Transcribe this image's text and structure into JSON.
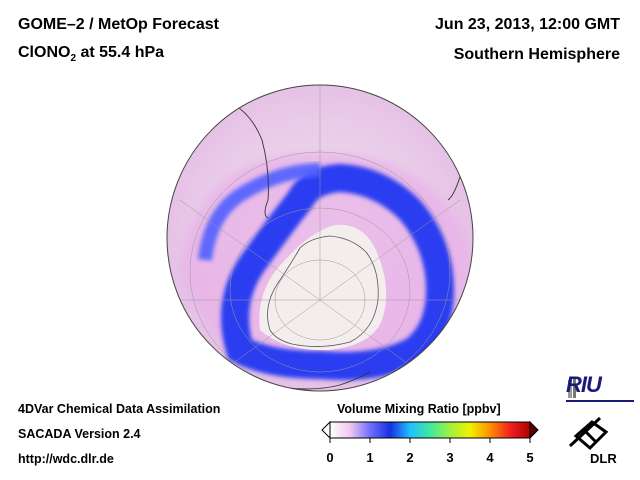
{
  "header": {
    "title": "GOME–2 / MetOp Forecast",
    "species_main": "ClONO",
    "species_sub": "2",
    "species_rest": " at 55.4 hPa",
    "datetime": "Jun 23, 2013, 12:00 GMT",
    "region": "Southern Hemisphere"
  },
  "footer": {
    "line1": "4DVar Chemical Data Assimilation",
    "line2": "SACADA Version 2.4",
    "line3": "http://wdc.dlr.de"
  },
  "colorbar": {
    "title": "Volume Mixing Ratio [ppbv]",
    "min": 0,
    "max": 5,
    "ticks": [
      "0",
      "1",
      "2",
      "3",
      "4",
      "5"
    ],
    "colors": [
      "#ffffff",
      "#f0c8f0",
      "#7070ff",
      "#1830e0",
      "#20c0ff",
      "#40e8a0",
      "#a0f040",
      "#f0f000",
      "#ff9000",
      "#f02020",
      "#b00000"
    ]
  },
  "logos": {
    "riu": "RIU",
    "dlr": "DLR"
  },
  "map": {
    "projection": "orthographic south polar",
    "land_color": "#f2e6e6",
    "low_color": "#ecc8ec",
    "vortex_color": "#2a3cf0",
    "interior_color": "#f4eded"
  }
}
